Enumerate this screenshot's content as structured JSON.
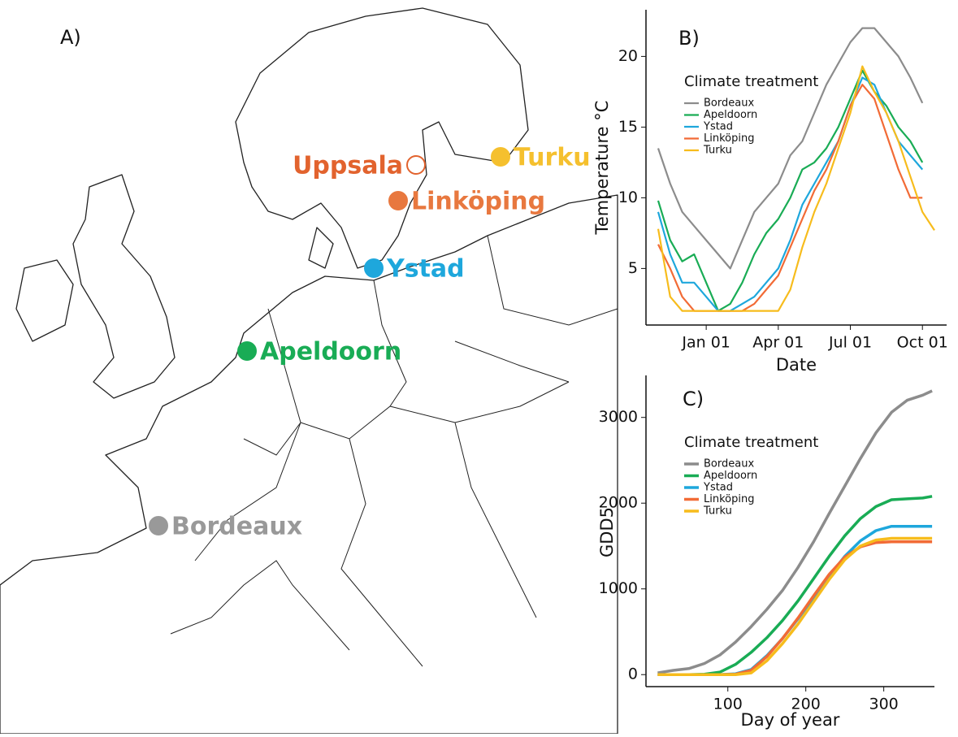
{
  "map": {
    "label": "A)",
    "sites": [
      {
        "name": "Uppsala",
        "color": "#e2632e",
        "filled": false
      },
      {
        "name": "Turku",
        "color": "#f5c02e",
        "filled": true
      },
      {
        "name": "Linköping",
        "color": "#e8783f",
        "filled": true
      },
      {
        "name": "Ystad",
        "color": "#1ea7dc",
        "filled": true
      },
      {
        "name": "Apeldoorn",
        "color": "#19ac55",
        "filled": true
      },
      {
        "name": "Bordeaux",
        "color": "#999999",
        "filled": true
      }
    ]
  },
  "chart_data": [
    {
      "type": "line",
      "label": "B)",
      "x_label": "Date",
      "y_label": "Temperature °C",
      "legend_title": "Climate treatment",
      "x": [
        "Nov 01",
        "Nov 15",
        "Dec 01",
        "Dec 15",
        "Jan 01",
        "Jan 15",
        "Feb 01",
        "Feb 15",
        "Mar 01",
        "Mar 15",
        "Apr 01",
        "Apr 15",
        "May 01",
        "May 15",
        "Jun 01",
        "Jun 15",
        "Jul 01",
        "Jul 15",
        "Aug 01",
        "Aug 15",
        "Sep 01",
        "Sep 15",
        "Oct 01",
        "Oct 15"
      ],
      "xticks": [
        "Jan 01",
        "Apr 01",
        "Jul 01",
        "Oct 01"
      ],
      "ylim": [
        1,
        23.3
      ],
      "yticks": [
        5,
        10,
        15,
        20
      ],
      "series": [
        {
          "name": "Bordeaux",
          "color": "#8c8c8c",
          "values": [
            13.5,
            11,
            9,
            8,
            7,
            6,
            5,
            7,
            9,
            10,
            11,
            13,
            14,
            16,
            18,
            19.5,
            21,
            22,
            22,
            21,
            20,
            18.5,
            16.7,
            null
          ]
        },
        {
          "name": "Apeldoorn",
          "color": "#19ac55",
          "values": [
            9.8,
            7,
            5.5,
            6,
            4,
            2,
            2.5,
            4,
            6,
            7.5,
            8.5,
            10,
            12,
            12.5,
            13.5,
            15,
            17,
            19,
            17.5,
            16.5,
            15,
            14,
            12.5,
            null
          ]
        },
        {
          "name": "Ystad",
          "color": "#1ea7dc",
          "values": [
            9,
            6,
            4,
            4,
            3,
            2,
            2,
            2.5,
            3,
            4,
            5,
            7,
            9.5,
            11,
            12.5,
            14,
            16.5,
            18.5,
            18,
            16,
            14,
            13,
            12,
            null
          ]
        },
        {
          "name": "Linköping",
          "color": "#f26b36",
          "values": [
            6.7,
            5,
            3,
            2,
            2,
            2,
            2,
            2,
            2.5,
            3.5,
            4.5,
            6.5,
            8.5,
            10.5,
            12,
            14,
            16.5,
            18,
            17,
            14.5,
            12,
            10,
            10,
            null
          ]
        },
        {
          "name": "Turku",
          "color": "#f7bc1c",
          "values": [
            7.8,
            3,
            2,
            2,
            2,
            2,
            2,
            2,
            2,
            2,
            2,
            3.5,
            6.5,
            9,
            11,
            13.5,
            16,
            19.3,
            17.5,
            16,
            14,
            11.5,
            9,
            7.7
          ]
        }
      ]
    },
    {
      "type": "line",
      "label": "C)",
      "x_label": "Day of year",
      "y_label": "GDD5",
      "legend_title": "Climate treatment",
      "x": [
        10,
        30,
        50,
        70,
        90,
        110,
        130,
        150,
        170,
        190,
        210,
        230,
        250,
        270,
        290,
        310,
        330,
        350,
        362
      ],
      "xlim": [
        -5,
        365
      ],
      "xticks": [
        100,
        200,
        300
      ],
      "ylim": [
        -140,
        3490
      ],
      "yticks": [
        0,
        1000,
        2000,
        3000
      ],
      "series": [
        {
          "name": "Bordeaux",
          "color": "#8c8c8c",
          "values": [
            20,
            50,
            70,
            130,
            230,
            380,
            560,
            760,
            980,
            1250,
            1550,
            1880,
            2200,
            2520,
            2820,
            3060,
            3200,
            3260,
            3310
          ]
        },
        {
          "name": "Apeldoorn",
          "color": "#19ac55",
          "values": [
            0,
            0,
            0,
            5,
            30,
            120,
            260,
            430,
            630,
            860,
            1120,
            1380,
            1620,
            1820,
            1960,
            2040,
            2050,
            2060,
            2080
          ]
        },
        {
          "name": "Ystad",
          "color": "#1ea7dc",
          "values": [
            0,
            0,
            0,
            0,
            0,
            10,
            60,
            220,
            420,
            650,
            900,
            1150,
            1380,
            1560,
            1680,
            1730,
            1730,
            1730,
            1730
          ]
        },
        {
          "name": "Linköping",
          "color": "#f26b36",
          "values": [
            0,
            0,
            0,
            0,
            0,
            5,
            50,
            210,
            420,
            660,
            920,
            1170,
            1370,
            1490,
            1540,
            1550,
            1550,
            1550,
            1550
          ]
        },
        {
          "name": "Turku",
          "color": "#f7bc1c",
          "values": [
            0,
            0,
            0,
            0,
            0,
            0,
            20,
            160,
            360,
            590,
            850,
            1110,
            1340,
            1500,
            1570,
            1590,
            1590,
            1590,
            1590
          ]
        }
      ]
    }
  ]
}
